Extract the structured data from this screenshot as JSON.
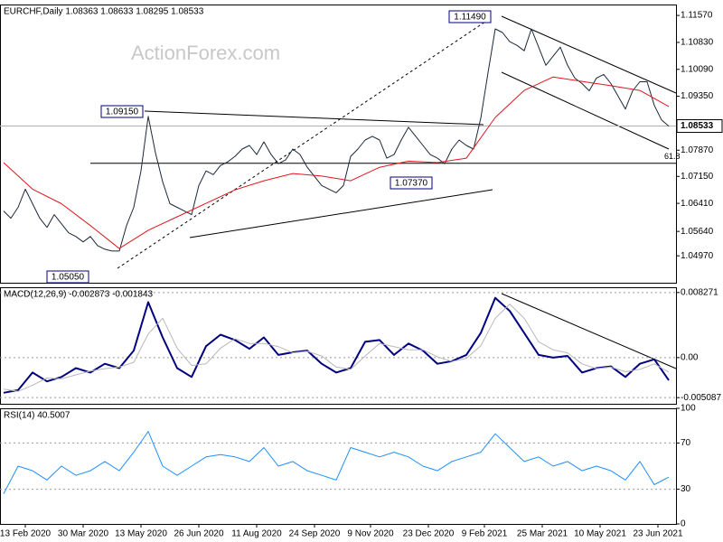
{
  "chart_data": [
    {
      "type": "line",
      "title": "EURCHF,Daily 1.08363 1.08633 1.08295 1.08533",
      "watermark": "ActionForex.com",
      "x": [
        0,
        4,
        8,
        12,
        16,
        20,
        24,
        28,
        32,
        36,
        40,
        44,
        48,
        52,
        56,
        60,
        64,
        68,
        72,
        76,
        80,
        84,
        88,
        92,
        96,
        100,
        104,
        108,
        112,
        116,
        120,
        124,
        128,
        132,
        136,
        140,
        144,
        148,
        152,
        156,
        160,
        164,
        168,
        172,
        176,
        180,
        184,
        188,
        192,
        196,
        200,
        204,
        208,
        212,
        216,
        220,
        224,
        228,
        232,
        236,
        240,
        244,
        248,
        252,
        256,
        260,
        264,
        268,
        272,
        276,
        280,
        284,
        288,
        292,
        296,
        300,
        304,
        308,
        312,
        316,
        320,
        324,
        328,
        332,
        336,
        340,
        344,
        348,
        352,
        356,
        360,
        364,
        368
      ],
      "xlim": [
        -2,
        372
      ],
      "ylim": [
        1.0423,
        1.1187
      ],
      "yticks": [
        {
          "value": 1.1157,
          "label": "1.11570"
        },
        {
          "value": 1.1083,
          "label": "1.10830"
        },
        {
          "value": 1.1009,
          "label": "1.10090"
        },
        {
          "value": 1.0935,
          "label": "1.09350"
        },
        {
          "value": 1.0787,
          "label": "1.07870"
        },
        {
          "value": 1.0715,
          "label": "1.07150"
        },
        {
          "value": 1.0641,
          "label": "1.06410"
        },
        {
          "value": 1.0564,
          "label": "1.05640"
        },
        {
          "value": 1.0497,
          "label": "1.04970"
        }
      ],
      "grid": false,
      "last_price": 1.08533,
      "fib": {
        "value": 1.0751,
        "label": "61.8"
      },
      "annotations": [
        "1.09150",
        "1.05050",
        "1.07370",
        "1.11490"
      ],
      "series": [
        {
          "color": "#1b2838",
          "values": [
            1.062,
            1.06,
            1.063,
            1.068,
            1.064,
            1.06,
            1.0575,
            1.061,
            1.0585,
            1.056,
            1.055,
            1.0535,
            1.055,
            1.0525,
            1.0515,
            1.051,
            1.051,
            1.058,
            1.063,
            1.073,
            1.088,
            1.078,
            1.07,
            1.064,
            1.063,
            1.062,
            1.061,
            1.069,
            1.073,
            1.072,
            1.0745,
            1.0755,
            1.077,
            1.079,
            1.08,
            1.0775,
            1.081,
            1.0775,
            1.075,
            1.076,
            1.079,
            1.0775,
            1.074,
            1.0715,
            1.069,
            1.068,
            1.067,
            1.069,
            1.077,
            1.079,
            1.0815,
            1.0825,
            1.0815,
            1.0765,
            1.0775,
            1.0815,
            1.085,
            1.0825,
            1.08,
            1.0775,
            1.0765,
            1.075,
            1.079,
            1.0815,
            1.08,
            1.079,
            1.0875,
            1.1,
            1.112,
            1.111,
            1.1085,
            1.1075,
            1.106,
            1.112,
            1.107,
            1.102,
            1.1045,
            1.107,
            1.102,
            1.0985,
            1.097,
            1.095,
            1.0985,
            1.0995,
            1.097,
            1.0935,
            1.09,
            1.095,
            1.0975,
            1.0975,
            1.091,
            1.087,
            1.0853
          ]
        },
        {
          "color": "#e0161e",
          "x": [
            0,
            16,
            32,
            48,
            64,
            80,
            96,
            112,
            128,
            144,
            160,
            176,
            192,
            208,
            224,
            240,
            256,
            272,
            288,
            304,
            320,
            336,
            352,
            368
          ],
          "values": [
            1.0753,
            1.068,
            1.064,
            1.058,
            1.0517,
            1.0567,
            1.0604,
            1.0641,
            1.0678,
            1.0703,
            1.0723,
            1.0716,
            1.0703,
            1.074,
            1.0757,
            1.0753,
            1.0765,
            1.0877,
            1.0951,
            1.0988,
            1.0976,
            1.0964,
            1.0951,
            1.0907
          ]
        }
      ]
    },
    {
      "type": "line",
      "title": "MACD(12,26,9) -0.002873 -0.001843",
      "x": [
        0,
        8,
        16,
        24,
        32,
        40,
        48,
        56,
        64,
        72,
        80,
        88,
        96,
        104,
        112,
        120,
        128,
        136,
        144,
        152,
        160,
        168,
        176,
        184,
        192,
        200,
        208,
        216,
        224,
        232,
        240,
        248,
        256,
        264,
        272,
        280,
        288,
        296,
        304,
        312,
        320,
        328,
        336,
        344,
        352,
        360,
        368
      ],
      "xlim": [
        -2,
        372
      ],
      "ylim": [
        -0.00587,
        0.00894
      ],
      "yticks": [
        0.008271,
        {
          "value": 0,
          "label": "0.00"
        },
        -0.005087
      ],
      "grid": true,
      "series": [
        {
          "color": "#000080",
          "values": [
            -0.00447,
            -0.00414,
            -0.0019,
            -0.00302,
            -0.00246,
            -0.00134,
            -0.0019,
            -0.00078,
            -0.00134,
            0.00089,
            0.00704,
            0.00257,
            -0.00134,
            -0.00246,
            0.00145,
            0.00291,
            0.00224,
            0.00112,
            0.00257,
            0.00034,
            0.00067,
            0.00089,
            -0.00078,
            -0.0019,
            -0.00134,
            0.00201,
            0.00224,
            0.00034,
            0.00179,
            0.00089,
            -0.00078,
            -0.00045,
            0.00034,
            0.00313,
            0.0076,
            0.00593,
            0.00313,
            0.00034,
            0,
            0.00022,
            -0.0019,
            -0.00134,
            -0.00112,
            -0.00246,
            -0.00078,
            -0.00022,
            -0.002873
          ]
        },
        {
          "color": "#b8b8b8",
          "values": [
            -0.004,
            -0.0043,
            -0.0035,
            -0.0026,
            -0.0027,
            -0.0022,
            -0.0017,
            -0.0014,
            -0.0012,
            -0.0006,
            0.003,
            0.005,
            0.0012,
            -0.001,
            -0.0008,
            0.0012,
            0.0024,
            0.0018,
            0.0018,
            0.0014,
            0.0006,
            0.0008,
            0.0002,
            -0.0012,
            -0.0015,
            0.0002,
            0.0018,
            0.0014,
            0.001,
            0.001,
            0.0001,
            -0.0005,
            -0.0001,
            0.0015,
            0.005,
            0.0068,
            0.005,
            0.002,
            0.001,
            0.0006,
            -0.0008,
            -0.0014,
            -0.0012,
            -0.0018,
            -0.0015,
            -0.0008,
            -0.001843
          ]
        }
      ]
    },
    {
      "type": "line",
      "title": "RSI(14) 40.5007",
      "x": [
        0,
        8,
        16,
        24,
        32,
        40,
        48,
        56,
        64,
        72,
        80,
        88,
        96,
        104,
        112,
        120,
        128,
        136,
        144,
        152,
        160,
        168,
        176,
        184,
        192,
        200,
        208,
        216,
        224,
        232,
        240,
        248,
        256,
        264,
        272,
        280,
        288,
        296,
        304,
        312,
        320,
        328,
        336,
        344,
        352,
        360,
        368
      ],
      "xlim": [
        -2,
        372
      ],
      "ylim": [
        0,
        100
      ],
      "yticks": [
        100,
        70,
        30,
        0
      ],
      "grid": true,
      "xticks": [
        {
          "value": 12,
          "label": "13 Feb 2020"
        },
        {
          "value": 44,
          "label": "30 Mar 2020"
        },
        {
          "value": 76,
          "label": "13 May 2020"
        },
        {
          "value": 108,
          "label": "26 Jun 2020"
        },
        {
          "value": 140,
          "label": "11 Aug 2020"
        },
        {
          "value": 172,
          "label": "24 Sep 2020"
        },
        {
          "value": 203,
          "label": "9 Nov 2020"
        },
        {
          "value": 235,
          "label": "23 Dec 2020"
        },
        {
          "value": 266,
          "label": "9 Feb 2021"
        },
        {
          "value": 298,
          "label": "25 Mar 2021"
        },
        {
          "value": 330,
          "label": "10 May 2021"
        },
        {
          "value": 362,
          "label": "23 Jun 2021"
        }
      ],
      "series": [
        {
          "color": "#1e90ff",
          "values": [
            26,
            50,
            46,
            38,
            50,
            42,
            46,
            54,
            46,
            62,
            80,
            50,
            42,
            50,
            58,
            60,
            58,
            54,
            66,
            50,
            54,
            46,
            42,
            38,
            66,
            62,
            58,
            62,
            58,
            50,
            46,
            54,
            58,
            62,
            78,
            66,
            54,
            58,
            50,
            54,
            46,
            50,
            46,
            38,
            54,
            34,
            40.5
          ]
        }
      ]
    }
  ]
}
